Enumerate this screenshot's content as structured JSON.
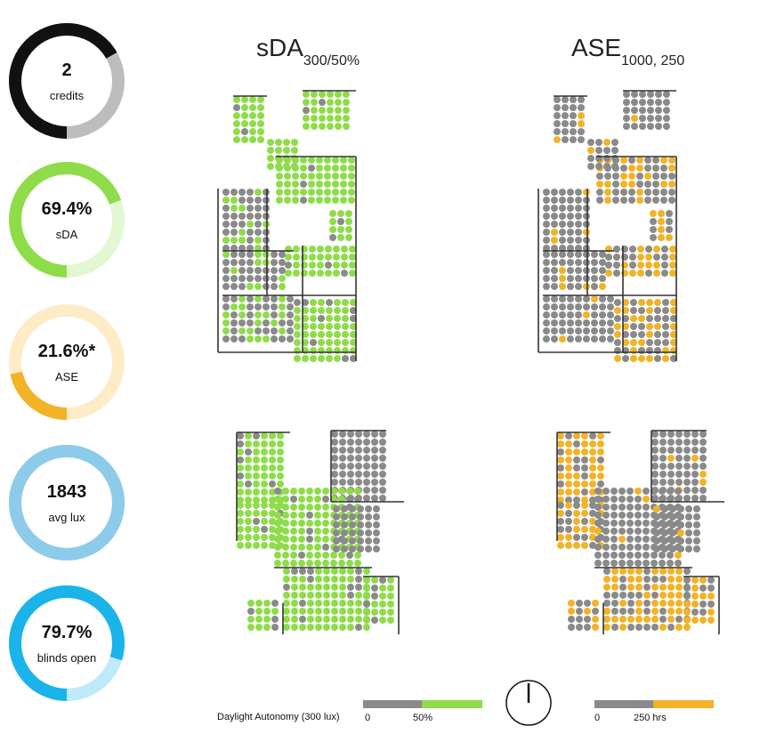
{
  "metrics": [
    {
      "value": "2",
      "label": "credits",
      "fraction": 0.667,
      "color": "#111111",
      "track": "#bdbdbd"
    },
    {
      "value": "69.4%",
      "label": "sDA",
      "fraction": 0.694,
      "color": "#8fdc4a",
      "track": "#e2f7d2"
    },
    {
      "value": "21.6%*",
      "label": "ASE",
      "fraction": 0.216,
      "color": "#f2b327",
      "track": "#fdecc6"
    },
    {
      "value": "1843",
      "label": "avg lux",
      "fraction": 1.0,
      "color": "#8ccbea",
      "track": "#8ccbea"
    },
    {
      "value": "79.7%",
      "label": "blinds open",
      "fraction": 0.797,
      "color": "#1ab3ea",
      "track": "#bfeaf9"
    }
  ],
  "headings": {
    "sda_main": "sDA",
    "sda_sub": "300/50%",
    "ase_main": "ASE",
    "ase_sub": "1000, 250"
  },
  "legend": {
    "sda_title": "Daylight Autonomy (300 lux)",
    "sda_zero": "0",
    "sda_mid": "50%",
    "ase_zero": "0",
    "ase_mid": "250 hrs"
  },
  "colors": {
    "grid_gray": "#8a8a8a",
    "sda_green": "#8fdc4a",
    "ase_orange": "#f2b327",
    "wall": "#333333"
  }
}
